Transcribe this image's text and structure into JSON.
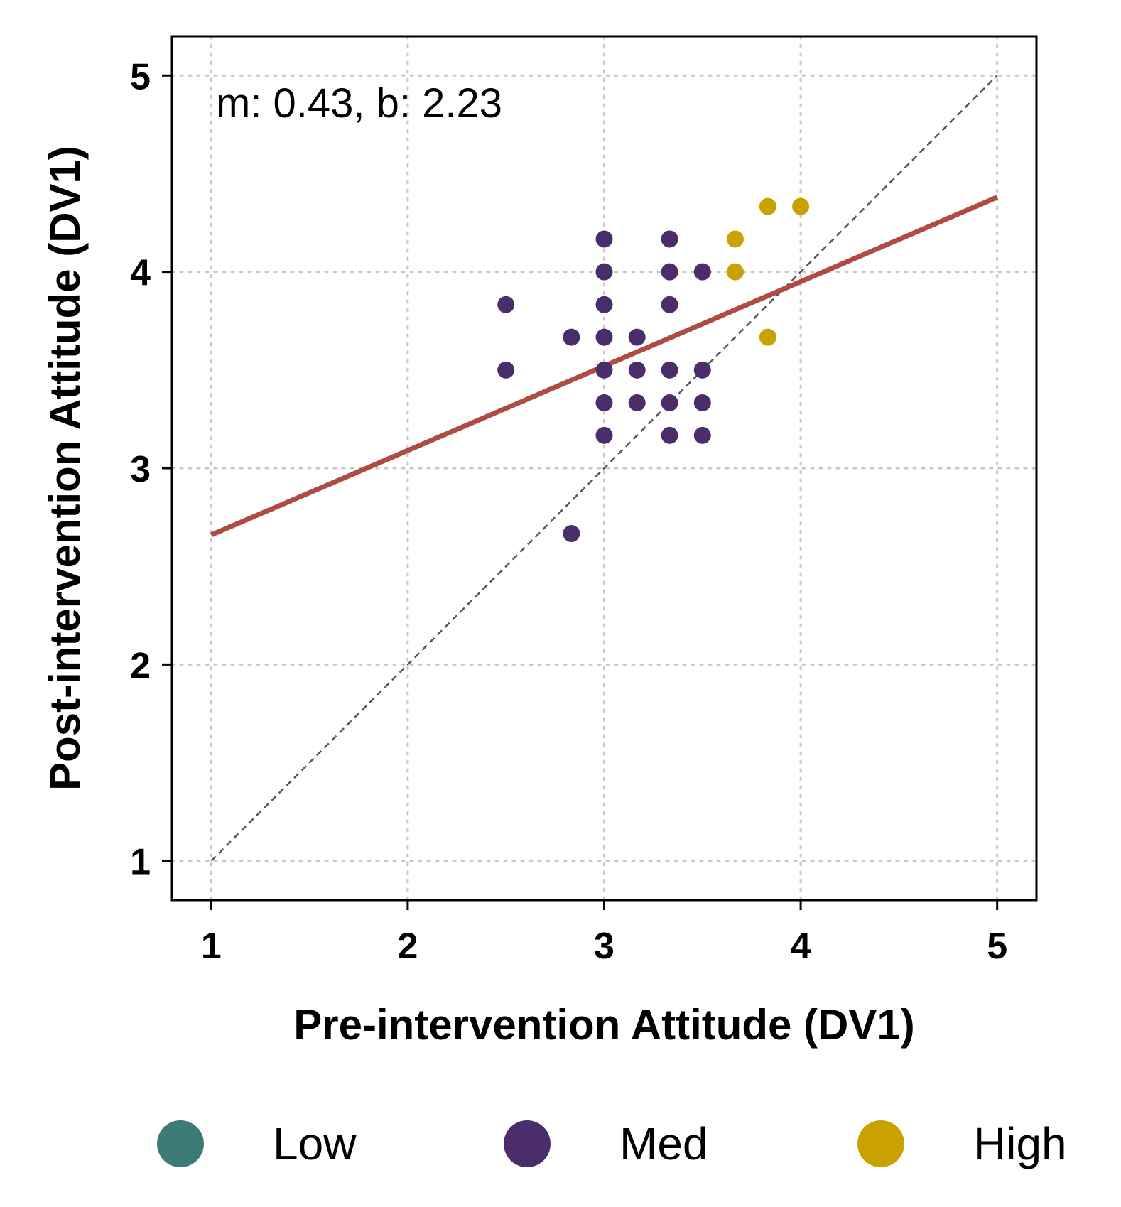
{
  "chart_data": {
    "type": "scatter",
    "title": "",
    "xlabel": "Pre-intervention Attitude (DV1)",
    "ylabel": "Post-intervention Attitude (DV1)",
    "xlim": [
      0.8,
      5.2
    ],
    "ylim": [
      0.8,
      5.2
    ],
    "xticks": [
      1,
      2,
      3,
      4,
      5
    ],
    "yticks": [
      1,
      2,
      3,
      4,
      5
    ],
    "xtick_labels": [
      "1",
      "2",
      "3",
      "4",
      "5"
    ],
    "ytick_labels": [
      "1",
      "2",
      "3",
      "4",
      "5"
    ],
    "grid": true,
    "annotation": "m: 0.43, b: 2.23",
    "regression": {
      "slope": 0.43,
      "intercept": 2.23,
      "x_range": [
        1,
        5
      ],
      "color": "#b04a44"
    },
    "identity_line": {
      "x_range": [
        1,
        5
      ],
      "color": "#555555"
    },
    "legend_position": "bottom",
    "series": [
      {
        "name": "Low",
        "color": "#3d7b76",
        "points": []
      },
      {
        "name": "Med",
        "color": "#4b2d6b",
        "points": [
          [
            2.5,
            3.833
          ],
          [
            2.5,
            3.5
          ],
          [
            2.833,
            3.667
          ],
          [
            2.833,
            2.667
          ],
          [
            3.0,
            4.167
          ],
          [
            3.0,
            4.0
          ],
          [
            3.0,
            3.833
          ],
          [
            3.0,
            3.667
          ],
          [
            3.0,
            3.5
          ],
          [
            3.0,
            3.333
          ],
          [
            3.0,
            3.167
          ],
          [
            3.167,
            3.667
          ],
          [
            3.167,
            3.5
          ],
          [
            3.167,
            3.333
          ],
          [
            3.333,
            4.167
          ],
          [
            3.333,
            4.0
          ],
          [
            3.333,
            3.833
          ],
          [
            3.333,
            3.5
          ],
          [
            3.333,
            3.333
          ],
          [
            3.333,
            3.167
          ],
          [
            3.5,
            4.0
          ],
          [
            3.5,
            3.5
          ],
          [
            3.5,
            3.333
          ],
          [
            3.5,
            3.167
          ]
        ]
      },
      {
        "name": "High",
        "color": "#c9a200",
        "points": [
          [
            3.667,
            4.167
          ],
          [
            3.667,
            4.0
          ],
          [
            3.833,
            4.333
          ],
          [
            3.833,
            3.667
          ],
          [
            4.0,
            4.333
          ]
        ]
      }
    ]
  }
}
